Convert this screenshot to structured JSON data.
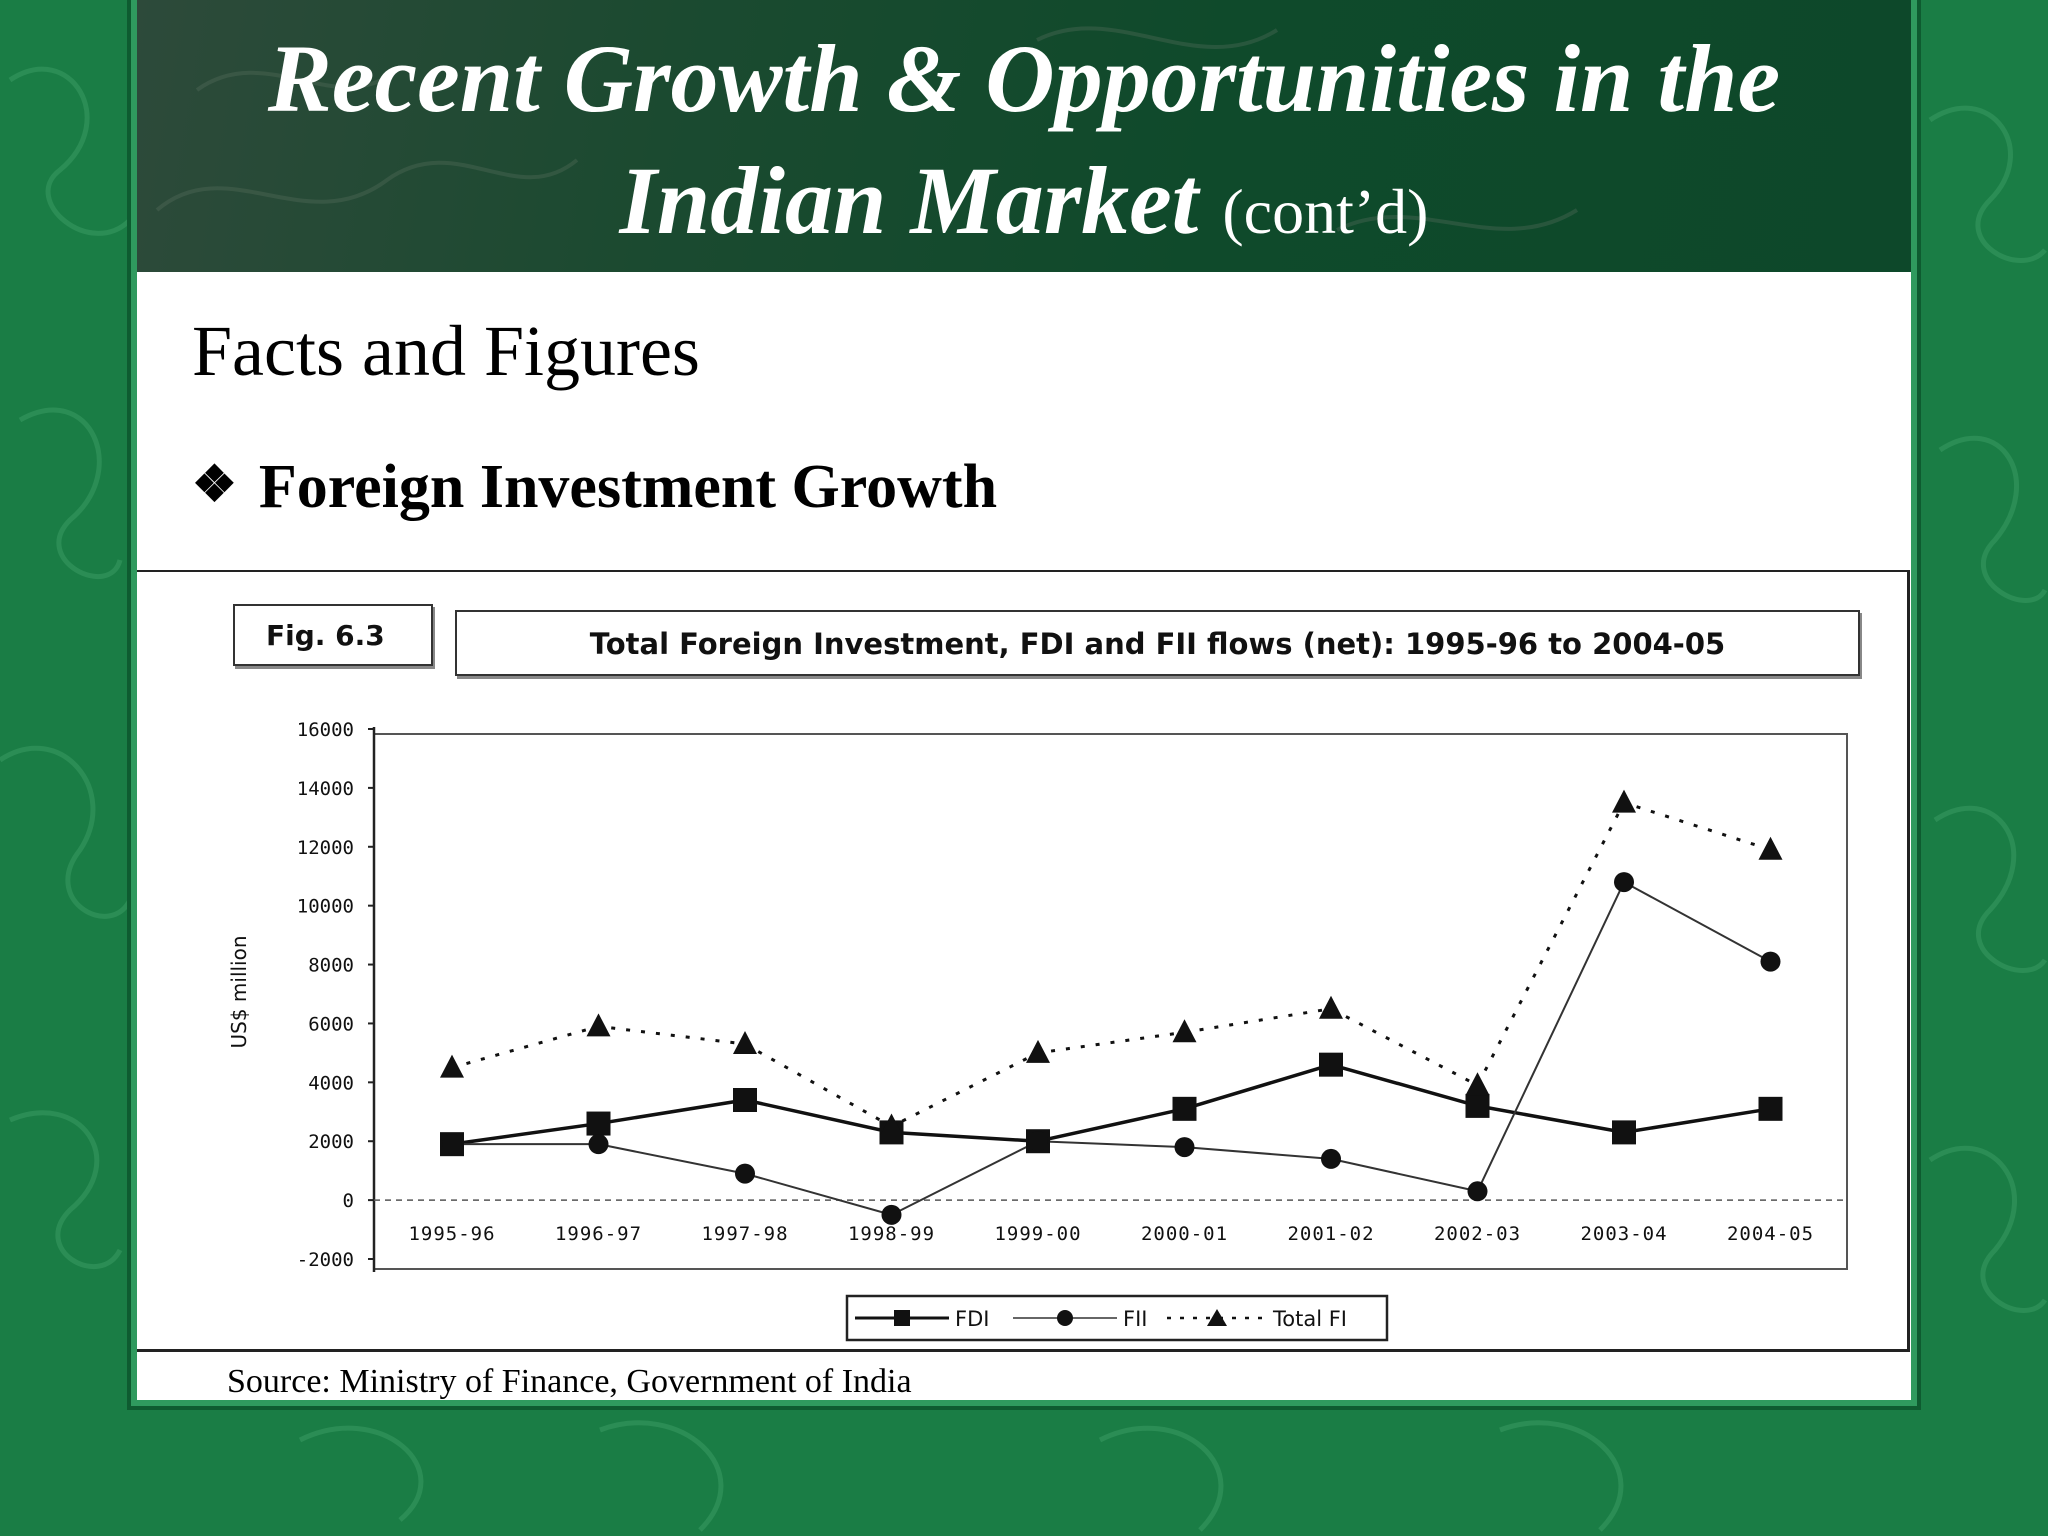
{
  "slide": {
    "title_line1": "Recent Growth & Opportunities in the",
    "title_line2": "Indian Market",
    "title_suffix": "(cont’d)",
    "section_title": "Facts and Figures",
    "bullet_glyph": "❖",
    "bullet_text": "Foreign Investment Growth",
    "source": "Source: Ministry of Finance, Government of India"
  },
  "colors": {
    "background": "#1a7d45",
    "title_band": "#0f4a2b",
    "panel": "#ffffff",
    "ink": "#111111"
  },
  "chart_data": {
    "type": "line",
    "fig_label": "Fig. 6.3",
    "title": "Total Foreign Investment, FDI and FII flows (net): 1995-96 to 2004-05",
    "xlabel": "",
    "ylabel": "US$ million",
    "categories": [
      "1995-96",
      "1996-97",
      "1997-98",
      "1998-99",
      "1999-00",
      "2000-01",
      "2001-02",
      "2002-03",
      "2003-04",
      "2004-05"
    ],
    "ylim": [
      -2000,
      16000
    ],
    "yticks": [
      16000,
      14000,
      12000,
      10000,
      8000,
      6000,
      4000,
      2000,
      0,
      -2000
    ],
    "ytick_labels": [
      "16000",
      "14000",
      "12000",
      "10000",
      "8000",
      "6000",
      "4000",
      "2000",
      "0",
      "-2000"
    ],
    "grid": false,
    "legend_position": "bottom-center",
    "series": [
      {
        "name": "FDI",
        "marker": "square",
        "style": "solid",
        "values": [
          1900,
          2600,
          3400,
          2300,
          2000,
          3100,
          4600,
          3200,
          2300,
          3100
        ]
      },
      {
        "name": "FII",
        "marker": "circle",
        "style": "thin",
        "values": [
          1900,
          1900,
          900,
          -500,
          2000,
          1800,
          1400,
          300,
          10800,
          8100
        ]
      },
      {
        "name": "Total FI",
        "marker": "triangle",
        "style": "dotted",
        "values": [
          4500,
          5900,
          5300,
          2500,
          5000,
          5700,
          6500,
          3900,
          13500,
          11900
        ]
      }
    ],
    "legend_labels": [
      "FDI",
      "FII",
      "Total FI"
    ]
  }
}
